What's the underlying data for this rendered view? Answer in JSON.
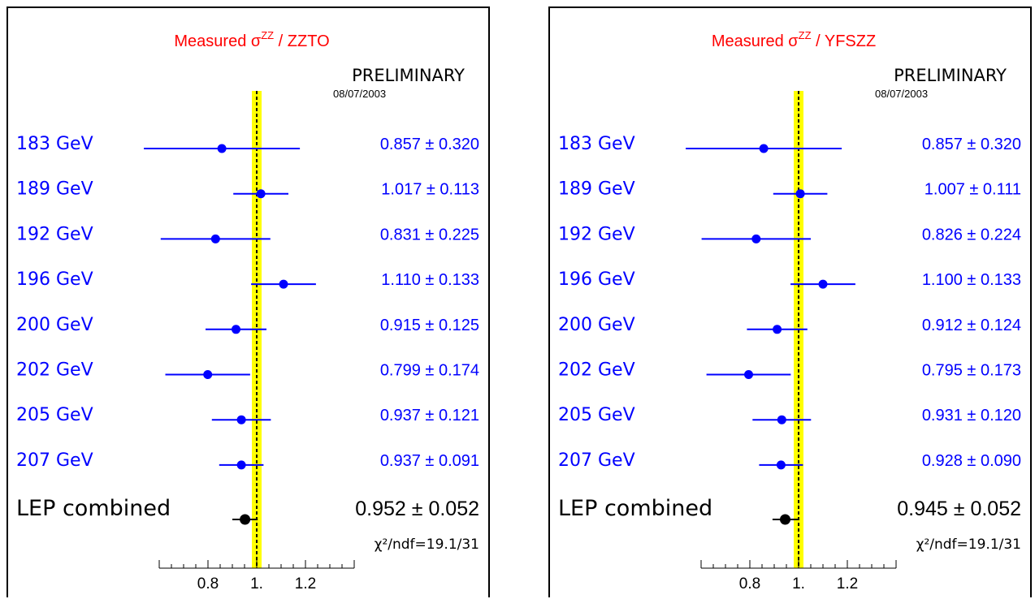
{
  "chart_data": [
    {
      "type": "scatter",
      "title_main": "Measured σ",
      "title_sup": "ZZ",
      "title_rest": " / ZZTO",
      "preliminary": "PRELIMINARY",
      "date": "08/07/2003",
      "x_range": [
        0.6,
        1.4
      ],
      "x_ticks": [
        "0.8",
        "1.",
        "1.2"
      ],
      "x_tick_values": [
        0.8,
        1.0,
        1.2
      ],
      "band": [
        0.98,
        1.02
      ],
      "band_color": "#ffff00",
      "reference_line": 1.0,
      "measurements": [
        {
          "label": "183 GeV",
          "value": 0.857,
          "error": 0.32,
          "text": "0.857 ± 0.320"
        },
        {
          "label": "189 GeV",
          "value": 1.017,
          "error": 0.113,
          "text": "1.017 ± 0.113"
        },
        {
          "label": "192 GeV",
          "value": 0.831,
          "error": 0.225,
          "text": "0.831 ± 0.225"
        },
        {
          "label": "196 GeV",
          "value": 1.11,
          "error": 0.133,
          "text": "1.110 ± 0.133"
        },
        {
          "label": "200 GeV",
          "value": 0.915,
          "error": 0.125,
          "text": "0.915 ± 0.125"
        },
        {
          "label": "202 GeV",
          "value": 0.799,
          "error": 0.174,
          "text": "0.799 ± 0.174"
        },
        {
          "label": "205 GeV",
          "value": 0.937,
          "error": 0.121,
          "text": "0.937 ± 0.121"
        },
        {
          "label": "207 GeV",
          "value": 0.937,
          "error": 0.091,
          "text": "0.937 ± 0.091"
        }
      ],
      "combined": {
        "label": "LEP combined",
        "value": 0.952,
        "error": 0.052,
        "text": "0.952 ± 0.052"
      },
      "chi2": "χ²/ndf=19.1/31",
      "colors": {
        "title": "#ff0000",
        "measurement": "#0000ff",
        "combined": "#000000"
      }
    },
    {
      "type": "scatter",
      "title_main": "Measured σ",
      "title_sup": "ZZ",
      "title_rest": " / YFSZZ",
      "preliminary": "PRELIMINARY",
      "date": "08/07/2003",
      "x_range": [
        0.6,
        1.4
      ],
      "x_ticks": [
        "0.8",
        "1.",
        "1.2"
      ],
      "x_tick_values": [
        0.8,
        1.0,
        1.2
      ],
      "band": [
        0.98,
        1.02
      ],
      "band_color": "#ffff00",
      "reference_line": 1.0,
      "measurements": [
        {
          "label": "183 GeV",
          "value": 0.857,
          "error": 0.32,
          "text": "0.857 ± 0.320"
        },
        {
          "label": "189 GeV",
          "value": 1.007,
          "error": 0.111,
          "text": "1.007 ± 0.111"
        },
        {
          "label": "192 GeV",
          "value": 0.826,
          "error": 0.224,
          "text": "0.826 ± 0.224"
        },
        {
          "label": "196 GeV",
          "value": 1.1,
          "error": 0.133,
          "text": "1.100 ± 0.133"
        },
        {
          "label": "200 GeV",
          "value": 0.912,
          "error": 0.124,
          "text": "0.912 ± 0.124"
        },
        {
          "label": "202 GeV",
          "value": 0.795,
          "error": 0.173,
          "text": "0.795 ± 0.173"
        },
        {
          "label": "205 GeV",
          "value": 0.931,
          "error": 0.12,
          "text": "0.931 ± 0.120"
        },
        {
          "label": "207 GeV",
          "value": 0.928,
          "error": 0.09,
          "text": "0.928 ± 0.090"
        }
      ],
      "combined": {
        "label": "LEP combined",
        "value": 0.945,
        "error": 0.052,
        "text": "0.945 ± 0.052"
      },
      "chi2": "χ²/ndf=19.1/31",
      "colors": {
        "title": "#ff0000",
        "measurement": "#0000ff",
        "combined": "#000000"
      }
    }
  ]
}
